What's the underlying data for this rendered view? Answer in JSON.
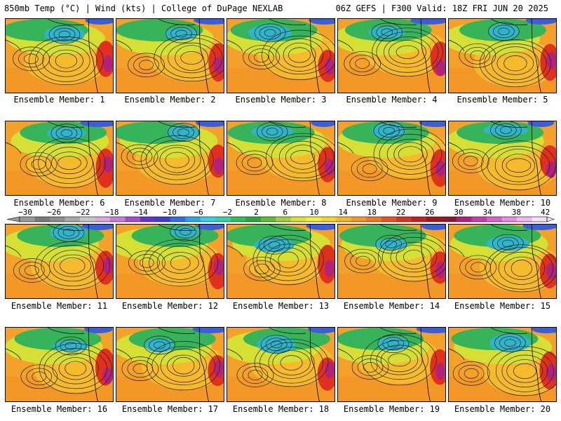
{
  "header": {
    "left": "850mb Temp (°C) | Wind (kts) | College of DuPage NEXLAB",
    "right": "06Z GEFS | F300 Valid: 18Z FRI JUN 20 2025"
  },
  "caption_prefix": "Ensemble Member: ",
  "members": [
    1,
    2,
    3,
    4,
    5,
    6,
    7,
    8,
    9,
    10,
    11,
    12,
    13,
    14,
    15,
    16,
    17,
    18,
    19,
    20
  ],
  "colorbar": {
    "labels": [
      "−30",
      "−26",
      "−22",
      "−18",
      "−14",
      "−10",
      "−6",
      "−2",
      "2",
      "6",
      "10",
      "14",
      "18",
      "22",
      "26",
      "30",
      "34",
      "38",
      "42"
    ],
    "colors": [
      "#9a9a9a",
      "#7a7a7a",
      "#8e8e8e",
      "#a9a9a9",
      "#c8c8c8",
      "#d9a9e0",
      "#c77ddc",
      "#a74bd1",
      "#6a32c9",
      "#3d3dd8",
      "#2f6fe8",
      "#2aa6ee",
      "#36d0e6",
      "#37d1a7",
      "#2fbf5a",
      "#2aa83c",
      "#5fbd33",
      "#9fd13a",
      "#d8e235",
      "#f3ef36",
      "#f8d52e",
      "#f7b62a",
      "#f49926",
      "#f07a22",
      "#ec5320",
      "#e0311e",
      "#c81f1c",
      "#a5161a",
      "#8c1b2e",
      "#b1227a",
      "#c93cad",
      "#dd5fd0",
      "#ec88e6",
      "#f4b6f0",
      "#f9dcf8"
    ]
  },
  "map_colors": {
    "warm": "#f4a12a",
    "warm2": "#f6bd2e",
    "mid": "#d6df33",
    "cool": "#37b35a",
    "cold": "#2fb4c9",
    "colder": "#3a5fd8",
    "hot": "#e0311e",
    "hotter": "#b1227a",
    "contour": "#222222",
    "coast": "#000000"
  }
}
